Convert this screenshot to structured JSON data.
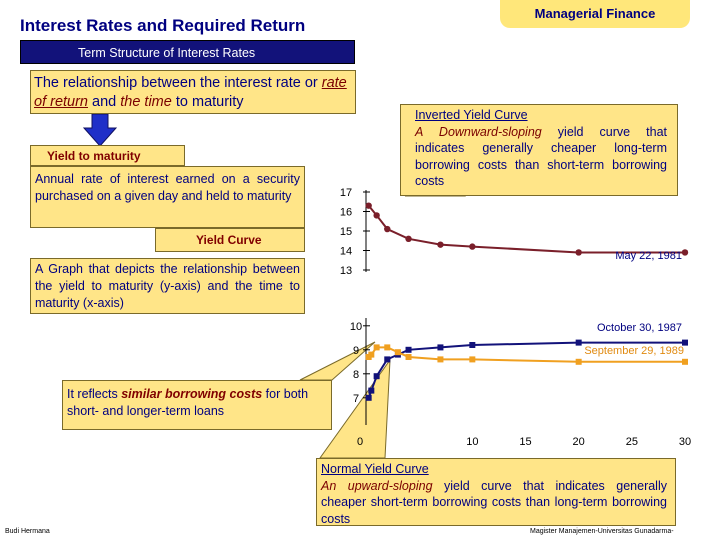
{
  "header": {
    "title": "Interest Rates and Required Return",
    "brand": "Managerial Finance"
  },
  "banner": "Term Structure of Interest Rates",
  "intro": {
    "part1": "The relationship between the interest rate or ",
    "rate_of_return": "rate of return",
    "part2": " and ",
    "time": "the time",
    "part3": " to maturity"
  },
  "ytm": {
    "label": "Yield to maturity",
    "definition": "Annual rate of interest earned on a security purchased on a given day and held to maturity"
  },
  "yield_curve": {
    "label": "Yield Curve",
    "definition": "A Graph that depicts the relationship between the yield to maturity (y-axis) and the time to maturity (x-axis)"
  },
  "similar": {
    "part1": "It reflects ",
    "em": "similar borrowing costs",
    "part2": " for both short- and longer-term loans"
  },
  "inverted": {
    "heading": "Inverted Yield Curve",
    "em": "A Downward-sloping",
    "rest": " yield curve that indicates generally cheaper long-term borrowing costs than short-term borrowing costs"
  },
  "normal": {
    "heading": "Normal Yield Curve",
    "em": "An upward-sloping",
    "rest": " yield curve that indicates generally cheaper short-term borrowing costs than long-term borrowing costs"
  },
  "footer": {
    "left": "Budi Hermana",
    "right": "Magister Manajemen-Universitas Gunadarma-"
  },
  "colors": {
    "navy": "#12127a",
    "orange": "#f0a020",
    "callout": "#ffe588",
    "inverted_line": "#7a1f2a"
  },
  "chart_data": [
    {
      "type": "line",
      "title": "",
      "xlabel": "",
      "ylabel": "",
      "y_ticks": [
        "17",
        "16",
        "15",
        "14",
        "13"
      ],
      "series": [
        {
          "name": "May 22, 1981",
          "x": [
            0.25,
            1,
            2,
            4,
            7,
            10,
            20,
            30
          ],
          "y": [
            16.3,
            15.8,
            15.1,
            14.6,
            14.3,
            14.2,
            13.9,
            13.9
          ]
        }
      ]
    },
    {
      "type": "line",
      "title": "",
      "xlabel": "",
      "ylabel": "",
      "x_ticks": [
        "0",
        "10",
        "15",
        "20",
        "25",
        "30"
      ],
      "y_ticks": [
        "10",
        "9",
        "8",
        "7"
      ],
      "series": [
        {
          "name": "October 30, 1987",
          "x": [
            0.25,
            0.5,
            1,
            2,
            3,
            4,
            7,
            10,
            20,
            30
          ],
          "y": [
            6.8,
            7.1,
            7.7,
            8.4,
            8.6,
            8.8,
            8.9,
            9.0,
            9.1,
            9.1
          ]
        },
        {
          "name": "September 29, 1989",
          "x": [
            0.25,
            0.5,
            1,
            2,
            3,
            4,
            7,
            10,
            20,
            30
          ],
          "y": [
            8.5,
            8.6,
            8.9,
            8.9,
            8.7,
            8.5,
            8.4,
            8.4,
            8.3,
            8.3
          ]
        }
      ]
    }
  ]
}
